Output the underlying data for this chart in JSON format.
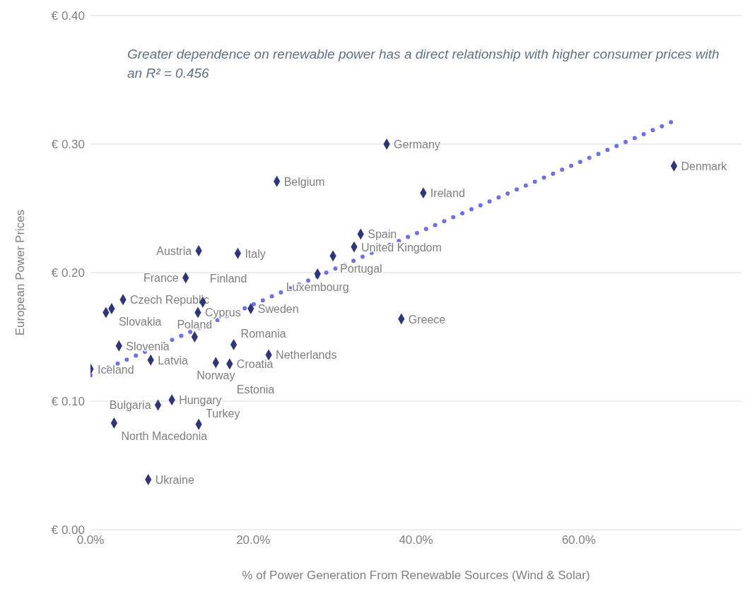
{
  "chart_data": {
    "type": "scatter",
    "xlabel": "% of Power Generation From Renewable Sources (Wind & Solar)",
    "ylabel": "European Power Prices",
    "xlim": [
      0,
      0.8
    ],
    "xticks": [
      {
        "value": 0,
        "label": "0.0%"
      },
      {
        "value": 0.2,
        "label": "20.0%"
      },
      {
        "value": 0.4,
        "label": "40.0%"
      },
      {
        "value": 0.6,
        "label": "60.0%"
      }
    ],
    "ylim": [
      0,
      0.4
    ],
    "yticks": [
      {
        "value": 0,
        "label": "€ 0.00"
      },
      {
        "value": 0.1,
        "label": "€ 0.10"
      },
      {
        "value": 0.2,
        "label": "€ 0.20"
      },
      {
        "value": 0.3,
        "label": "€ 0.30"
      },
      {
        "value": 0.4,
        "label": "€ 0.40"
      }
    ],
    "grid": "y",
    "legend": false,
    "series": [
      {
        "type": "scatter",
        "marker": "diamond",
        "color": "#2e3480",
        "x": [
          0.0,
          0.029,
          0.019,
          0.026,
          0.04,
          0.035,
          0.074,
          0.083,
          0.1,
          0.071,
          0.133,
          0.128,
          0.154,
          0.171,
          0.176,
          0.219,
          0.132,
          0.138,
          0.197,
          0.117,
          0.133,
          0.181,
          0.229,
          0.364,
          0.409,
          0.717,
          0.382,
          0.332,
          0.324,
          0.298,
          0.279
        ],
        "values": [
          0.125,
          0.083,
          0.169,
          0.172,
          0.179,
          0.143,
          0.132,
          0.097,
          0.101,
          0.039,
          0.082,
          0.15,
          0.13,
          0.129,
          0.144,
          0.136,
          0.169,
          0.177,
          0.172,
          0.196,
          0.217,
          0.215,
          0.271,
          0.3,
          0.262,
          0.283,
          0.164,
          0.23,
          0.22,
          0.213,
          0.199
        ]
      },
      {
        "type": "line",
        "line_style": "dotted",
        "marker": "none",
        "color": "#6e6ef0",
        "x": [
          0,
          0.717
        ],
        "values": [
          0.12,
          0.318
        ]
      }
    ],
    "annotations": [
      "Greater dependence on renewable power has a direct relationship with higher consumer prices with an R² = 0.456",
      {
        "text": "Iceland",
        "x": 0.0,
        "y": 0.125
      },
      {
        "text": "North Macedonia",
        "x": 0.029,
        "y": 0.083
      },
      {
        "text": "Slovakia",
        "x": 0.026,
        "y": 0.172
      },
      {
        "text": "Czech Republic",
        "x": 0.04,
        "y": 0.179
      },
      {
        "text": "Slovenia",
        "x": 0.035,
        "y": 0.143
      },
      {
        "text": "Latvia",
        "x": 0.074,
        "y": 0.132
      },
      {
        "text": "Bulgaria",
        "x": 0.083,
        "y": 0.097
      },
      {
        "text": "Hungary",
        "x": 0.1,
        "y": 0.101
      },
      {
        "text": "Ukraine",
        "x": 0.071,
        "y": 0.039
      },
      {
        "text": "Turkey",
        "x": 0.133,
        "y": 0.082
      },
      {
        "text": "Poland",
        "x": 0.128,
        "y": 0.15
      },
      {
        "text": "Norway",
        "x": 0.154,
        "y": 0.13
      },
      {
        "text": "Estonia",
        "x": 0.171,
        "y": 0.129
      },
      {
        "text": "Croatia",
        "x": 0.171,
        "y": 0.129
      },
      {
        "text": "Romania",
        "x": 0.176,
        "y": 0.144
      },
      {
        "text": "Netherlands",
        "x": 0.219,
        "y": 0.136
      },
      {
        "text": "Cyprus",
        "x": 0.132,
        "y": 0.169
      },
      {
        "text": "Finland",
        "x": 0.138,
        "y": 0.177
      },
      {
        "text": "Sweden",
        "x": 0.197,
        "y": 0.172
      },
      {
        "text": "France",
        "x": 0.117,
        "y": 0.196
      },
      {
        "text": "Austria",
        "x": 0.133,
        "y": 0.217
      },
      {
        "text": "Italy",
        "x": 0.181,
        "y": 0.215
      },
      {
        "text": "Belgium",
        "x": 0.229,
        "y": 0.271
      },
      {
        "text": "Germany",
        "x": 0.364,
        "y": 0.3
      },
      {
        "text": "Ireland",
        "x": 0.409,
        "y": 0.262
      },
      {
        "text": "Denmark",
        "x": 0.717,
        "y": 0.283
      },
      {
        "text": "Greece",
        "x": 0.382,
        "y": 0.164
      },
      {
        "text": "Spain",
        "x": 0.332,
        "y": 0.23
      },
      {
        "text": "United Kingdom",
        "x": 0.324,
        "y": 0.22
      },
      {
        "text": "Portugal",
        "x": 0.298,
        "y": 0.213
      },
      {
        "text": "Luxembourg",
        "x": 0.279,
        "y": 0.199
      }
    ]
  }
}
